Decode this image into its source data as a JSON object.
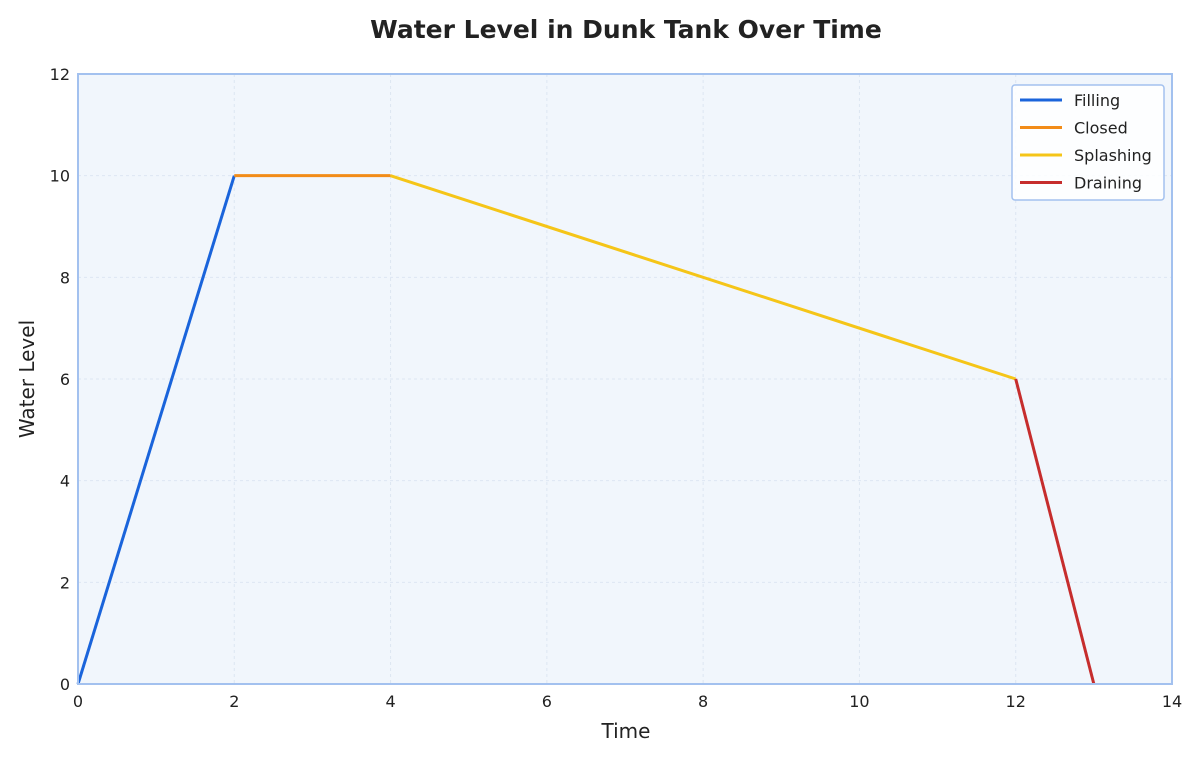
{
  "chart_data": {
    "type": "line",
    "title": "Water Level in Dunk Tank Over Time",
    "xlabel": "Time",
    "ylabel": "Water Level",
    "xlim": [
      0,
      14
    ],
    "ylim": [
      0,
      12
    ],
    "xticks": [
      0,
      2,
      4,
      6,
      8,
      10,
      12,
      14
    ],
    "yticks": [
      0,
      2,
      4,
      6,
      8,
      10,
      12
    ],
    "grid": true,
    "legend_position": "top-right",
    "series": [
      {
        "name": "Filling",
        "color": "#1a64db",
        "x": [
          0,
          2
        ],
        "y": [
          0,
          10
        ]
      },
      {
        "name": "Closed",
        "color": "#f28c18",
        "x": [
          2,
          4
        ],
        "y": [
          10,
          10
        ]
      },
      {
        "name": "Splashing",
        "color": "#f5c518",
        "x": [
          4,
          12
        ],
        "y": [
          10,
          6
        ]
      },
      {
        "name": "Draining",
        "color": "#c62d2d",
        "x": [
          12,
          13
        ],
        "y": [
          6,
          0
        ]
      }
    ],
    "colors": {
      "plot_background": "#f1f6fc",
      "plot_border": "#a3c1ef",
      "grid": "#dde6f2"
    }
  }
}
